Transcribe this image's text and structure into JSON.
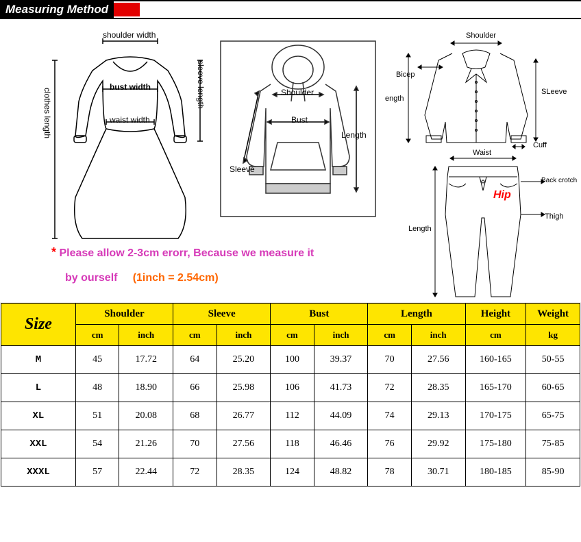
{
  "header": {
    "title": "Measuring Method"
  },
  "diagrams": {
    "dress": {
      "labels": {
        "shoulder": "shoulder width",
        "bust": "bust width",
        "waist": "waist width",
        "sleeve": "sleeve length",
        "clothes": "clothes length"
      }
    },
    "hoodie": {
      "labels": {
        "shoulder": "Shoulder",
        "bust": "Bust",
        "sleeve": "Sleeve",
        "length": "Length"
      }
    },
    "shirt": {
      "labels": {
        "shoulder": "Shoulder",
        "bicep": "Bicep",
        "sleeve": "SLeeve",
        "length": "ength",
        "cuff": "Cuff"
      }
    },
    "pants": {
      "labels": {
        "waist": "Waist",
        "hip": "Hip",
        "back_crotch": "Back crotch",
        "thigh": "Thigh",
        "length": "Length"
      }
    }
  },
  "note": {
    "line1_star": "*",
    "line1_text": "Please allow 2-3cm erorr, Because we measure  it",
    "line2_text": "by ourself",
    "line2_conv": "(1inch = 2.54cm)"
  },
  "size_table": {
    "header_bg": "#fee500",
    "size_label": "Size",
    "groups": [
      "Shoulder",
      "Sleeve",
      "Bust",
      "Length",
      "Height",
      "Weight"
    ],
    "units_pair": [
      "cm",
      "inch"
    ],
    "units_single": {
      "height": "cm",
      "weight": "kg"
    },
    "rows": [
      {
        "size": "M",
        "shoulder_cm": "45",
        "shoulder_in": "17.72",
        "sleeve_cm": "64",
        "sleeve_in": "25.20",
        "bust_cm": "100",
        "bust_in": "39.37",
        "length_cm": "70",
        "length_in": "27.56",
        "height": "160-165",
        "weight": "50-55"
      },
      {
        "size": "L",
        "shoulder_cm": "48",
        "shoulder_in": "18.90",
        "sleeve_cm": "66",
        "sleeve_in": "25.98",
        "bust_cm": "106",
        "bust_in": "41.73",
        "length_cm": "72",
        "length_in": "28.35",
        "height": "165-170",
        "weight": "60-65"
      },
      {
        "size": "XL",
        "shoulder_cm": "51",
        "shoulder_in": "20.08",
        "sleeve_cm": "68",
        "sleeve_in": "26.77",
        "bust_cm": "112",
        "bust_in": "44.09",
        "length_cm": "74",
        "length_in": "29.13",
        "height": "170-175",
        "weight": "65-75"
      },
      {
        "size": "XXL",
        "shoulder_cm": "54",
        "shoulder_in": "21.26",
        "sleeve_cm": "70",
        "sleeve_in": "27.56",
        "bust_cm": "118",
        "bust_in": "46.46",
        "length_cm": "76",
        "length_in": "29.92",
        "height": "175-180",
        "weight": "75-85"
      },
      {
        "size": "XXXL",
        "shoulder_cm": "57",
        "shoulder_in": "22.44",
        "sleeve_cm": "72",
        "sleeve_in": "28.35",
        "bust_cm": "124",
        "bust_in": "48.82",
        "length_cm": "78",
        "length_in": "30.71",
        "height": "180-185",
        "weight": "85-90"
      }
    ]
  }
}
